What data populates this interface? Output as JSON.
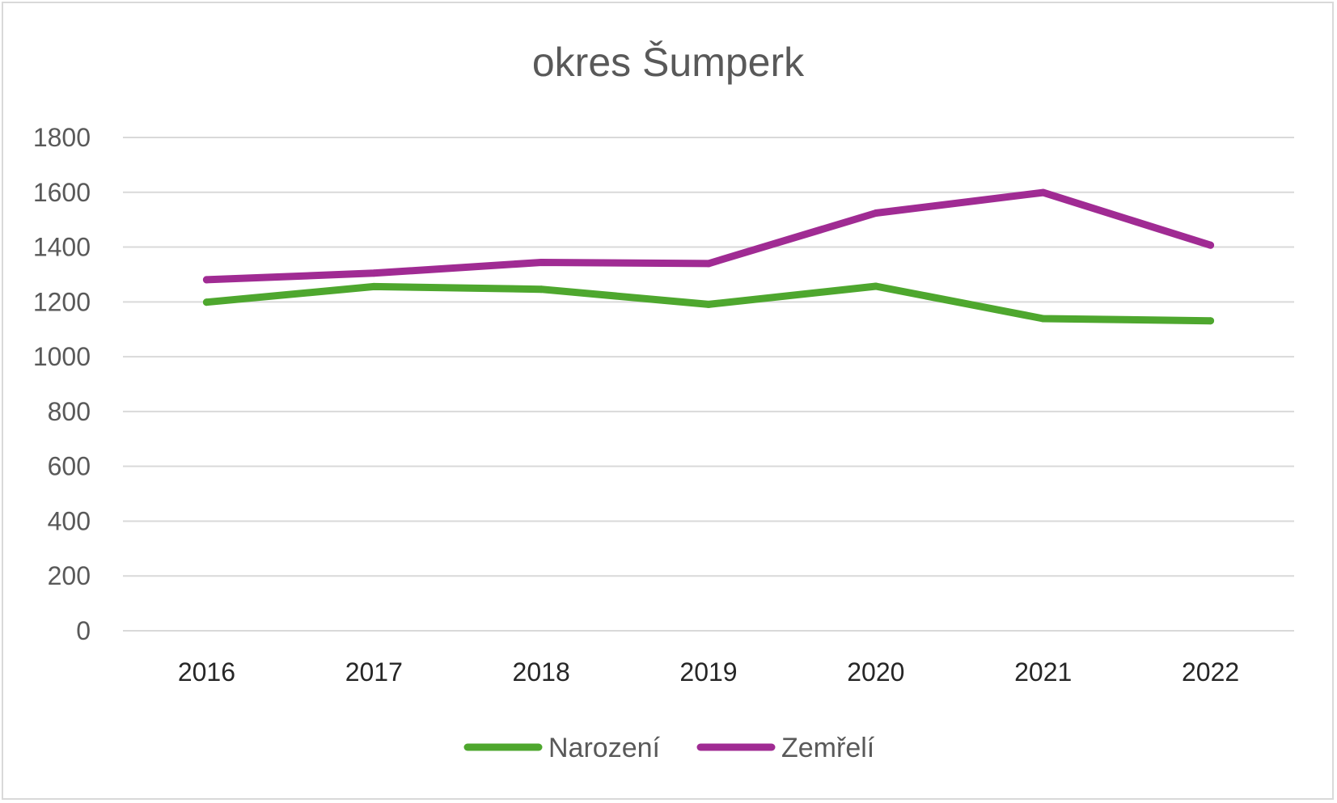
{
  "chart_data": {
    "type": "line",
    "title": "okres Šumperk",
    "xlabel": "",
    "ylabel": "",
    "categories": [
      "2016",
      "2017",
      "2018",
      "2019",
      "2020",
      "2021",
      "2022"
    ],
    "ylim": [
      0,
      1800
    ],
    "yticks": [
      0,
      200,
      400,
      600,
      800,
      1000,
      1200,
      1400,
      1600,
      1800
    ],
    "grid": true,
    "legend_position": "bottom",
    "series": [
      {
        "name": "Narození",
        "color": "#4ea72e",
        "values": [
          1199,
          1256,
          1246,
          1191,
          1257,
          1139,
          1131
        ]
      },
      {
        "name": "Zemřelí",
        "color": "#a02b93",
        "values": [
          1281,
          1305,
          1344,
          1340,
          1524,
          1599,
          1407
        ]
      }
    ]
  }
}
